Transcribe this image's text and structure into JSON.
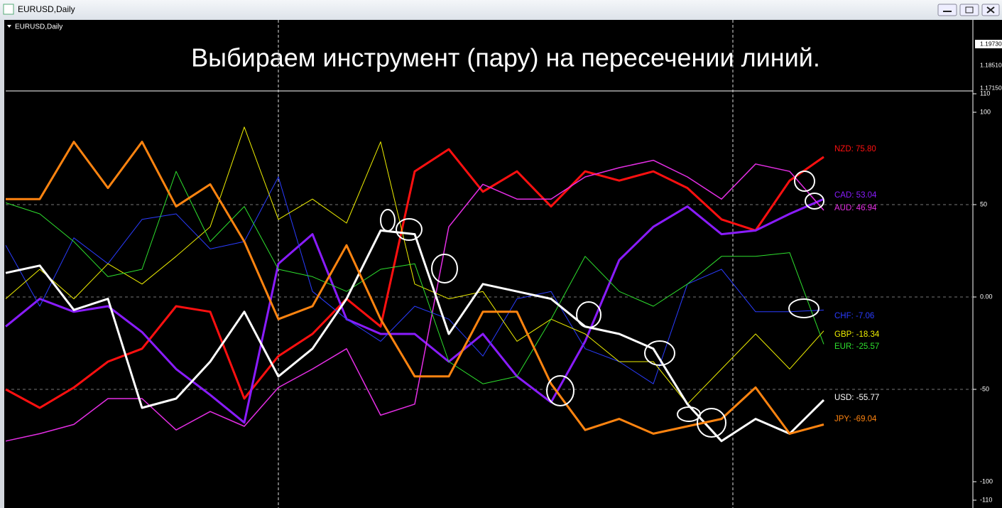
{
  "window": {
    "title": "EURUSD,Daily"
  },
  "price_pane": {
    "label": "EURUSD,Daily",
    "annotation": "Выбираем инструмент (пару) на пересечении линий.",
    "price_labels": [
      "1.19730",
      "1.18510",
      "1.17150"
    ]
  },
  "chart_data": {
    "type": "line",
    "categories": [
      null,
      null,
      null,
      null,
      null,
      null,
      null,
      null,
      null,
      null,
      null,
      null,
      null,
      null,
      null,
      null,
      null,
      null,
      null,
      null,
      null,
      null,
      null,
      null,
      null
    ],
    "ylim": [
      -110,
      110
    ],
    "yticks": [
      110,
      100,
      50,
      {
        "value": 0,
        "label": "0.00"
      },
      -50,
      -100,
      -110
    ],
    "grid": true,
    "series": [
      {
        "name": "NZD",
        "end_label": "NZD: 75.80",
        "color": "#ff1010",
        "line_width": 3,
        "values": [
          -50,
          -60,
          -49,
          -35,
          -28,
          -5,
          -8,
          -55,
          -32,
          -20,
          -1,
          -16,
          68,
          80,
          57,
          68,
          49,
          68,
          63,
          68,
          59,
          42,
          36,
          63,
          75.8
        ]
      },
      {
        "name": "CAD",
        "end_label": "CAD: 53.04",
        "color": "#8a1cff",
        "line_width": 3,
        "values": [
          -16,
          -1,
          -8,
          -5,
          -19,
          -39,
          -53,
          -68,
          18,
          34,
          -12,
          -20,
          -20,
          -35,
          -20,
          -43,
          -57,
          -24,
          20,
          38,
          49,
          34,
          36,
          45,
          53.04
        ]
      },
      {
        "name": "AUD",
        "end_label": "AUD: 46.94",
        "color": "#e52ee5",
        "line_width": 1.5,
        "values": [
          -78,
          -74,
          -69,
          -55,
          -55,
          -72,
          -62,
          -70,
          -49,
          -39,
          -28,
          -64,
          -58,
          38,
          61,
          53,
          53,
          65,
          70,
          74,
          65,
          53,
          72,
          68,
          46.94
        ]
      },
      {
        "name": "CHF",
        "end_label": "CHF: -7.06",
        "color": "#2a3cff",
        "line_width": 1,
        "values": [
          28,
          -5,
          32,
          18,
          42,
          45,
          26,
          30,
          65,
          3,
          -12,
          -24,
          -5,
          -12,
          -32,
          -1,
          3,
          -28,
          -35,
          -47,
          7,
          15,
          -8,
          -8,
          -7.06
        ]
      },
      {
        "name": "GBP",
        "end_label": "GBP: -18.34",
        "color": "#f0f000",
        "line_width": 1,
        "values": [
          -1,
          15,
          -1,
          18,
          7,
          22,
          38,
          92,
          42,
          53,
          40,
          84,
          7,
          -1,
          3,
          -24,
          -12,
          -20,
          -35,
          -35,
          -58,
          -39,
          -20,
          -39,
          -18.34
        ]
      },
      {
        "name": "EUR",
        "end_label": "EUR: -25.57",
        "color": "#2ee02e",
        "line_width": 1,
        "values": [
          51,
          45,
          30,
          11,
          15,
          68,
          30,
          49,
          15,
          11,
          3,
          15,
          18,
          -35,
          -47,
          -43,
          -12,
          22,
          3,
          -5,
          7,
          22,
          22,
          24,
          -25.57
        ]
      },
      {
        "name": "USD",
        "end_label": "USD: -55.77",
        "color": "#ffffff",
        "line_width": 3,
        "values": [
          13,
          17,
          -7,
          -1,
          -60,
          -55,
          -35,
          -8,
          -43,
          -28,
          -1,
          36,
          34,
          -20,
          7,
          3,
          -1,
          -16,
          -20,
          -28,
          -58,
          -78,
          -66,
          -74,
          -55.77
        ]
      },
      {
        "name": "JPY",
        "end_label": "JPY: -69.04",
        "color": "#ff8410",
        "line_width": 3,
        "values": [
          53,
          53,
          84,
          59,
          84,
          49,
          61,
          30,
          -12,
          -5,
          28,
          -12,
          -43,
          -43,
          -8,
          -8,
          -47,
          -72,
          -66,
          -74,
          -70,
          -66,
          -49,
          -74,
          -69.04
        ]
      }
    ]
  }
}
